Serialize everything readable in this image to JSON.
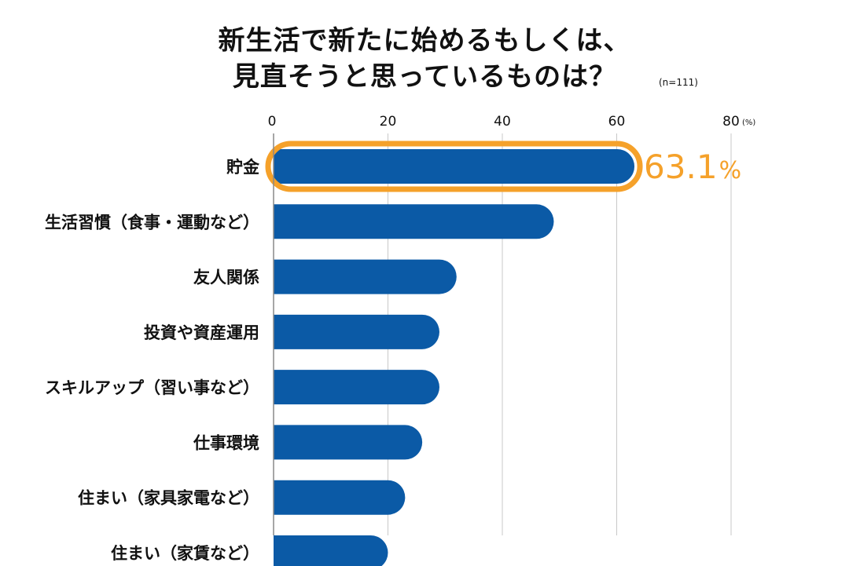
{
  "chart_data": {
    "type": "bar",
    "orientation": "horizontal",
    "title_line1": "新生活で新たに始めるもしくは、",
    "title_line2": "見直そうと思っているものは？",
    "sample_size": "(n=111)",
    "unit": "(%)",
    "xlim": [
      0,
      80
    ],
    "xticks": [
      "0",
      "20",
      "40",
      "60",
      "80"
    ],
    "grid": true,
    "categories": [
      "貯金",
      "生活習慣（食事・運動など）",
      "友人関係",
      "投資や資産運用",
      "スキルアップ（習い事など）",
      "仕事環境",
      "住まい（家具家電など）",
      "住まい（家賃など）"
    ],
    "values": [
      63.1,
      49,
      32,
      29,
      29,
      26,
      23,
      20
    ],
    "highlight": {
      "index": 0,
      "label": "63.1",
      "suffix": "%"
    },
    "colors": {
      "bar": "#0b5aa6",
      "highlight": "#f5a12a",
      "grid": "#c8c8c8"
    }
  }
}
